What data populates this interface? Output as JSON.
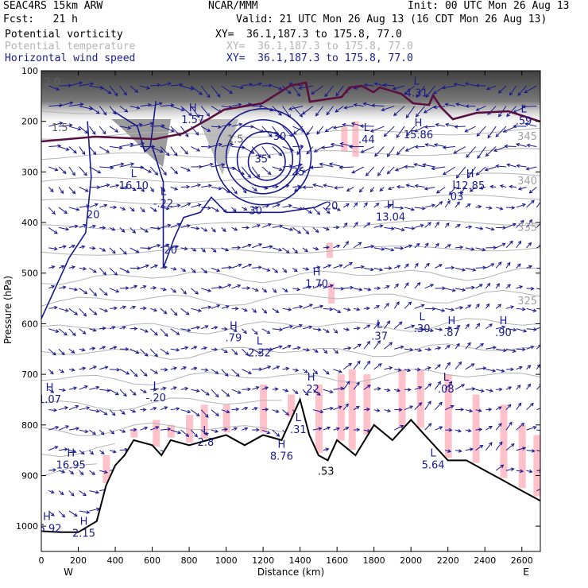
{
  "header": {
    "left1": "SEAC4RS 15km ARW",
    "center1": "NCAR/MMM",
    "right1": "Init: 00 UTC Mon 26 Aug 13",
    "left2": "Fcst:   21 h",
    "right2": "Valid: 21 UTC Mon 26 Aug 13 (16 CDT Mon 26 Aug 13)"
  },
  "legend": [
    {
      "name": "Potential vorticity",
      "xy": "XY=  36.1,187.3 to 175.8, 77.0",
      "color": "#000000"
    },
    {
      "name": "Potential temperature",
      "xy": "XY=  36.1,187.3 to 175.8, 77.0",
      "color": "#b4b4b4"
    },
    {
      "name": "Horizontal wind speed",
      "xy": "XY=  36.1,187.3 to 175.8, 77.0",
      "color": "#1a1a8c"
    }
  ],
  "colors": {
    "pv_shade": "#303030",
    "moisture": "#ffb6c1",
    "wind": "#1a1a8c",
    "theta": "#b4b4b4",
    "tropopause": "#5a1040",
    "terrain": "#000000"
  },
  "chart_data": {
    "type": "cross-section",
    "xlabel": "Distance (km)",
    "ylabel": "Pressure (hPa)",
    "xlim": [
      0,
      2700
    ],
    "ylim": [
      1050,
      100
    ],
    "x_ticks": [
      0,
      200,
      400,
      600,
      800,
      1000,
      1200,
      1400,
      1600,
      1800,
      2000,
      2200,
      2400,
      2600
    ],
    "y_ticks": [
      100,
      200,
      300,
      400,
      500,
      600,
      700,
      800,
      900,
      1000
    ],
    "x_end_labels": {
      "left": "W",
      "right": "E"
    },
    "terrain": {
      "x": [
        0,
        100,
        200,
        300,
        350,
        400,
        450,
        500,
        600,
        650,
        700,
        800,
        900,
        1000,
        1100,
        1200,
        1300,
        1400,
        1450,
        1500,
        1550,
        1600,
        1700,
        1800,
        1900,
        2000,
        2100,
        2200,
        2300,
        2400,
        2500,
        2600,
        2700
      ],
      "p": [
        1010,
        1012,
        1012,
        990,
        920,
        880,
        860,
        830,
        840,
        860,
        830,
        840,
        830,
        820,
        840,
        820,
        830,
        750,
        820,
        860,
        870,
        830,
        860,
        800,
        830,
        790,
        830,
        870,
        870,
        890,
        910,
        930,
        950
      ]
    },
    "theta_levels": [
      {
        "label": "345",
        "p": 230
      },
      {
        "label": "340",
        "p": 318
      },
      {
        "label": "335",
        "p": 410
      },
      {
        "label": "325",
        "p": 555
      }
    ],
    "pv_labels": [
      {
        "text": "1.5",
        "x": 100,
        "p": 213
      },
      {
        "text": "1.5",
        "x": 1050,
        "p": 236
      },
      {
        "text": "2.0",
        "x": 60,
        "p": 123
      }
    ],
    "wind_speed_contours": [
      {
        "label": "20",
        "x": 280,
        "p": 385
      },
      {
        "label": "20",
        "x": 700,
        "p": 455
      },
      {
        "label": "20",
        "x": 1570,
        "p": 368
      },
      {
        "label": "25",
        "x": 1390,
        "p": 300
      },
      {
        "label": "30",
        "x": 1290,
        "p": 230
      },
      {
        "label": "35",
        "x": 1190,
        "p": 275
      },
      {
        "label": "30",
        "x": 1160,
        "p": 377
      }
    ],
    "hl_markers": [
      {
        "type": "H",
        "value": "1.07",
        "x": 45,
        "p": 750
      },
      {
        "type": "H",
        "value": "16.95",
        "x": 160,
        "p": 880
      },
      {
        "type": "H",
        "value": "15.92",
        "x": 30,
        "p": 1005
      },
      {
        "type": "H",
        "value": "2.15",
        "x": 230,
        "p": 1015
      },
      {
        "type": "L",
        "value": "16.10",
        "x": 500,
        "p": 328
      },
      {
        "type": "L",
        "value": "-.22",
        "x": 660,
        "p": 363
      },
      {
        "type": "L",
        "value": "-.20",
        "x": 620,
        "p": 747
      },
      {
        "type": "L",
        "value": "2.8",
        "x": 890,
        "p": 835
      },
      {
        "type": "H",
        "value": ".79",
        "x": 1040,
        "p": 628
      },
      {
        "type": "L",
        "value": "2.32",
        "x": 1180,
        "p": 658
      },
      {
        "type": "H",
        "value": ".22",
        "x": 1460,
        "p": 730
      },
      {
        "type": "H",
        "value": "8.76",
        "x": 1300,
        "p": 862
      },
      {
        "type": "L",
        "value": ".31",
        "x": 1390,
        "p": 810
      },
      {
        "type": "H",
        "value": "1.70",
        "x": 1490,
        "p": 522
      },
      {
        "type": "L",
        "value": ".37",
        "x": 1830,
        "p": 625
      },
      {
        "type": "L",
        "value": ".44",
        "x": 1760,
        "p": 237
      },
      {
        "type": "H",
        "value": "13.04",
        "x": 1890,
        "p": 390
      },
      {
        "type": "H",
        "value": "15.86",
        "x": 2040,
        "p": 227
      },
      {
        "type": "L",
        "value": ".03",
        "x": 2240,
        "p": 350
      },
      {
        "type": "H",
        "value": "12.85",
        "x": 2320,
        "p": 328
      },
      {
        "type": "L",
        "value": ".30",
        "x": 2060,
        "p": 610
      },
      {
        "type": "H",
        "value": ".87",
        "x": 2220,
        "p": 618
      },
      {
        "type": "L",
        "value": ".08",
        "x": 2190,
        "p": 730
      },
      {
        "type": "H",
        "value": ".90",
        "x": 2500,
        "p": 618
      },
      {
        "type": "L",
        "value": "5.64",
        "x": 2120,
        "p": 880
      },
      {
        "type": "L",
        "value": ".59",
        "x": 2610,
        "p": 200
      },
      {
        "type": "L",
        "value": "4.31",
        "x": 2030,
        "p": 145
      },
      {
        "type": "H",
        "value": "1.57",
        "x": 820,
        "p": 197
      }
    ],
    "bottom_label": {
      "text": ".53",
      "x": 1540,
      "p": 892
    }
  }
}
